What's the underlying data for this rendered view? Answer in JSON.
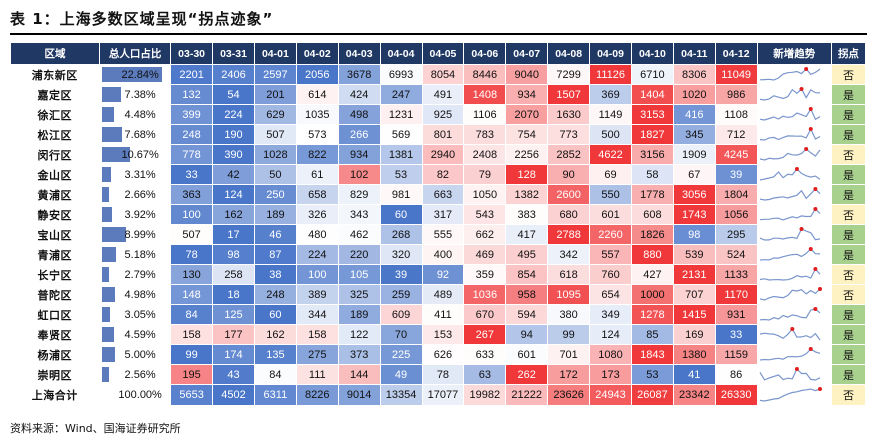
{
  "title": "表 1：上海多数区域呈现“拐点迹象”",
  "source": "资料来源：Wind、国海证券研究所",
  "columns": {
    "district": "区域",
    "share": "总人口占比",
    "trend": "新增趋势",
    "inflection": "拐点"
  },
  "colors": {
    "header_bg": "#1f3864",
    "low": "#4a76c9",
    "mid": "#ffffff",
    "high": "#f0383a",
    "flag_yes": "#a9d18e",
    "flag_no": "#fff2c2",
    "spark_line": "#7a96cc",
    "spark_peak": "#e02020"
  },
  "chart_data": {
    "type": "table",
    "dates": [
      "03-30",
      "03-31",
      "04-01",
      "04-02",
      "04-03",
      "04-04",
      "04-05",
      "04-06",
      "04-07",
      "04-08",
      "04-09",
      "04-10",
      "04-11",
      "04-12"
    ],
    "rows": [
      {
        "district": "浦东新区",
        "share": "22.84%",
        "share_value": 22.84,
        "values": [
          2201,
          2406,
          2597,
          2056,
          3678,
          6993,
          8054,
          8446,
          9040,
          7299,
          11126,
          6710,
          8306,
          11049
        ],
        "inflection": "否"
      },
      {
        "district": "嘉定区",
        "share": "7.38%",
        "share_value": 7.38,
        "values": [
          132,
          54,
          201,
          614,
          424,
          247,
          491,
          1408,
          934,
          1507,
          369,
          1404,
          1020,
          986
        ],
        "inflection": "是"
      },
      {
        "district": "徐汇区",
        "share": "4.48%",
        "share_value": 4.48,
        "values": [
          399,
          224,
          629,
          1035,
          498,
          1231,
          925,
          1106,
          2070,
          1630,
          1149,
          3153,
          416,
          1108
        ],
        "inflection": "是"
      },
      {
        "district": "松江区",
        "share": "7.68%",
        "share_value": 7.68,
        "values": [
          248,
          190,
          507,
          573,
          266,
          569,
          801,
          783,
          754,
          773,
          500,
          1827,
          345,
          712
        ],
        "inflection": "是"
      },
      {
        "district": "闵行区",
        "share": "10.67%",
        "share_value": 10.67,
        "values": [
          778,
          390,
          1028,
          822,
          934,
          1381,
          2940,
          2408,
          2256,
          2852,
          4622,
          3156,
          1909,
          4245
        ],
        "inflection": "否"
      },
      {
        "district": "金山区",
        "share": "3.31%",
        "share_value": 3.31,
        "values": [
          33,
          42,
          50,
          61,
          102,
          53,
          82,
          79,
          128,
          90,
          69,
          58,
          67,
          39
        ],
        "inflection": "是"
      },
      {
        "district": "黄浦区",
        "share": "2.66%",
        "share_value": 2.66,
        "values": [
          363,
          124,
          250,
          658,
          829,
          981,
          663,
          1050,
          1382,
          2600,
          550,
          1778,
          3056,
          1804
        ],
        "inflection": "是"
      },
      {
        "district": "静安区",
        "share": "3.92%",
        "share_value": 3.92,
        "values": [
          100,
          162,
          189,
          326,
          343,
          60,
          317,
          543,
          383,
          680,
          601,
          608,
          1743,
          1056
        ],
        "inflection": "否"
      },
      {
        "district": "宝山区",
        "share": "8.99%",
        "share_value": 8.99,
        "values": [
          507,
          17,
          46,
          480,
          462,
          268,
          555,
          662,
          417,
          2788,
          2260,
          1826,
          98,
          295
        ],
        "inflection": "是"
      },
      {
        "district": "青浦区",
        "share": "5.18%",
        "share_value": 5.18,
        "values": [
          78,
          98,
          87,
          224,
          220,
          320,
          400,
          469,
          495,
          342,
          557,
          880,
          539,
          524
        ],
        "inflection": "是"
      },
      {
        "district": "长宁区",
        "share": "2.79%",
        "share_value": 2.79,
        "values": [
          130,
          258,
          38,
          100,
          105,
          39,
          92,
          359,
          854,
          618,
          760,
          427,
          2131,
          1133
        ],
        "inflection": "否"
      },
      {
        "district": "普陀区",
        "share": "4.98%",
        "share_value": 4.98,
        "values": [
          148,
          18,
          248,
          389,
          325,
          259,
          489,
          1036,
          958,
          1095,
          654,
          1000,
          707,
          1170
        ],
        "inflection": "否"
      },
      {
        "district": "虹口区",
        "share": "3.05%",
        "share_value": 3.05,
        "values": [
          84,
          125,
          60,
          344,
          189,
          609,
          411,
          670,
          594,
          380,
          349,
          1278,
          1415,
          931
        ],
        "inflection": "是"
      },
      {
        "district": "奉贤区",
        "share": "4.59%",
        "share_value": 4.59,
        "values": [
          158,
          177,
          162,
          158,
          122,
          70,
          153,
          267,
          94,
          99,
          124,
          85,
          169,
          33
        ],
        "inflection": "是"
      },
      {
        "district": "杨浦区",
        "share": "5.00%",
        "share_value": 5.0,
        "values": [
          99,
          174,
          135,
          275,
          373,
          225,
          626,
          633,
          601,
          701,
          1080,
          1843,
          1380,
          1159
        ],
        "inflection": "是"
      },
      {
        "district": "崇明区",
        "share": "2.56%",
        "share_value": 2.56,
        "values": [
          195,
          43,
          84,
          111,
          144,
          49,
          78,
          63,
          262,
          172,
          173,
          53,
          41,
          86
        ],
        "inflection": "是"
      }
    ],
    "total": {
      "district": "上海合计",
      "share": "100.00%",
      "share_value": 100,
      "values": [
        5653,
        4502,
        6311,
        8226,
        9014,
        13354,
        17077,
        19982,
        21222,
        23626,
        24943,
        26087,
        23342,
        26330
      ],
      "inflection": "否"
    }
  }
}
